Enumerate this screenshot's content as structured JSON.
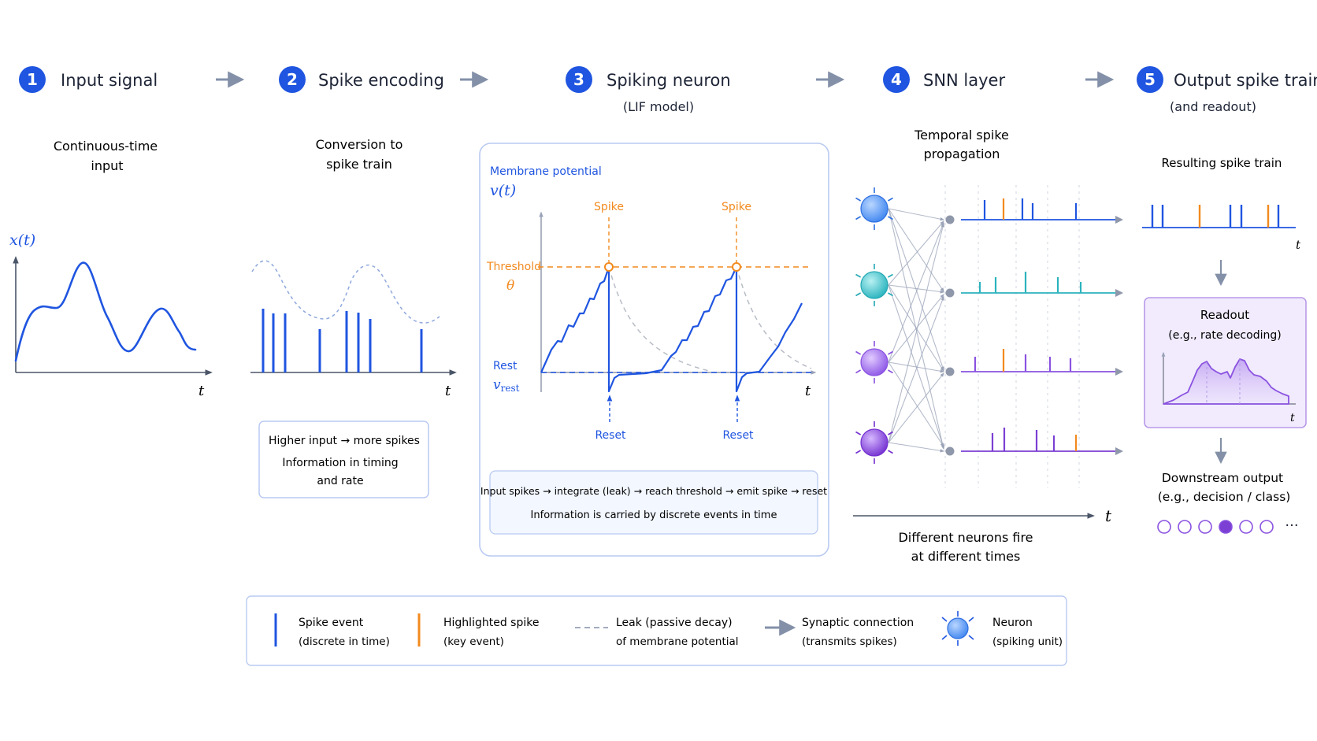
{
  "colors": {
    "blue": "#1f55e0",
    "orange": "#f28a1e",
    "teal": "#2bb3be",
    "purple": "#7c3fd3",
    "violet": "#8a52e0",
    "arrow_gray": "#8390a8",
    "text": "#1d2436",
    "panel_border": "#b9caf2",
    "panel_fill": "#f3f7ff",
    "readout_fill": "#f1ebfd"
  },
  "steps": [
    {
      "num": "1",
      "title": "Input signal",
      "subtitle": ""
    },
    {
      "num": "2",
      "title": "Spike encoding",
      "subtitle": ""
    },
    {
      "num": "3",
      "title": "Spiking neuron",
      "subtitle": "(LIF model)"
    },
    {
      "num": "4",
      "title": "SNN layer",
      "subtitle": ""
    },
    {
      "num": "5",
      "title": "Output spike train",
      "subtitle": "(and readout)"
    }
  ],
  "input": {
    "desc1": "Continuous-time",
    "desc2": "input",
    "ylabel": "x(t)",
    "xlabel": "t"
  },
  "encoding": {
    "desc1": "Conversion to",
    "desc2": "spike train",
    "xlabel": "t",
    "note1": "Higher input → more spikes",
    "note2": "Information in timing",
    "note3": "and rate"
  },
  "lif": {
    "membrane_label": "Membrane potential",
    "ylabel": "v(t)",
    "spike1": "Spike",
    "spike2": "Spike",
    "threshold": "Threshold",
    "theta": "θ",
    "rest": "Rest",
    "vrest": "v",
    "vrest_sub": "rest",
    "xlabel": "t",
    "reset1": "Reset",
    "reset2": "Reset",
    "caption1": "Input spikes → integrate (leak) → reach threshold → emit spike → reset",
    "caption2": "Information is carried by discrete events in time"
  },
  "snn": {
    "desc1": "Temporal spike",
    "desc2": "propagation",
    "time_label": "t",
    "footer1": "Different neurons fire",
    "footer2": "at different times"
  },
  "output": {
    "desc": "Resulting spike train",
    "xlabel": "t",
    "readout_title": "Readout",
    "readout_sub": "(e.g., rate decoding)",
    "readout_xlabel": "t",
    "downstream1": "Downstream output",
    "downstream2": "(e.g., decision / class)",
    "ellipsis": "···",
    "class_selected_index": 3,
    "class_count": 6
  },
  "legend": [
    {
      "key": "spike",
      "line1": "Spike event",
      "line2": "(discrete in time)"
    },
    {
      "key": "highlight",
      "line1": "Highlighted spike",
      "line2": "(key event)"
    },
    {
      "key": "leak",
      "line1": "Leak (passive decay)",
      "line2": "of membrane potential"
    },
    {
      "key": "synapse",
      "line1": "Synaptic connection",
      "line2": "(transmits spikes)"
    },
    {
      "key": "neuron",
      "line1": "Neuron",
      "line2": "(spiking unit)"
    }
  ]
}
